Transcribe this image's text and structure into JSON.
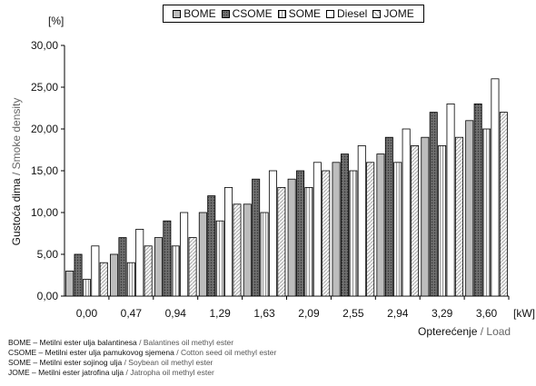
{
  "chart_data": {
    "type": "bar",
    "unit_y": "[%]",
    "unit_x": "[kW]",
    "xlabel": {
      "main": "Opterećenje",
      "sep": " / ",
      "en": "Load"
    },
    "ylabel": {
      "main": "Gustoća dima",
      "sep": " / ",
      "en": "Smoke density"
    },
    "ylim": [
      0,
      30
    ],
    "yticks": [
      "0,00",
      "5,00",
      "10,00",
      "15,00",
      "20,00",
      "25,00",
      "30,00"
    ],
    "categories": [
      "0,00",
      "0,47",
      "0,94",
      "1,29",
      "1,63",
      "2,09",
      "2,55",
      "2,94",
      "3,29",
      "3,60"
    ],
    "legend_position": "top",
    "series": [
      {
        "name": "BOME",
        "color": "#bdbdbd",
        "values": [
          3,
          5,
          7,
          10,
          11,
          14,
          16,
          17,
          19,
          21
        ]
      },
      {
        "name": "CSOME",
        "color": "#6e6e6e",
        "values": [
          5,
          7,
          9,
          12,
          14,
          15,
          17,
          19,
          22,
          23
        ]
      },
      {
        "name": "SOME",
        "color": "#e6e6e6",
        "values": [
          2,
          4,
          6,
          9,
          10,
          13,
          15,
          16,
          18,
          20
        ]
      },
      {
        "name": "Diesel",
        "color": "#fafafa",
        "values": [
          6,
          8,
          10,
          13,
          15,
          16,
          18,
          20,
          23,
          26
        ]
      },
      {
        "name": "JOME",
        "color": "#d2d2d2",
        "values": [
          4,
          6,
          7,
          11,
          13,
          15,
          16,
          18,
          19,
          22
        ]
      }
    ]
  },
  "notes": [
    {
      "abbr": "BOME",
      "dash": " – ",
      "hr": "Metilni ester ulja balantinesa",
      "sep": " / ",
      "en": "Balantines oil methyl ester"
    },
    {
      "abbr": "CSOME",
      "dash": " – ",
      "hr": "Metilni ester ulja pamukovog sjemena",
      "sep": " / ",
      "en": "Cotton seed oil methyl ester"
    },
    {
      "abbr": "SOME",
      "dash": " – ",
      "hr": "Metilni ester sojinog ulja",
      "sep": " / ",
      "en": "Soybean oil methyl ester"
    },
    {
      "abbr": "JOME",
      "dash": " – ",
      "hr": "Metilni ester jatrofina ulja",
      "sep": " / ",
      "en": "Jatropha oil methyl ester"
    }
  ]
}
